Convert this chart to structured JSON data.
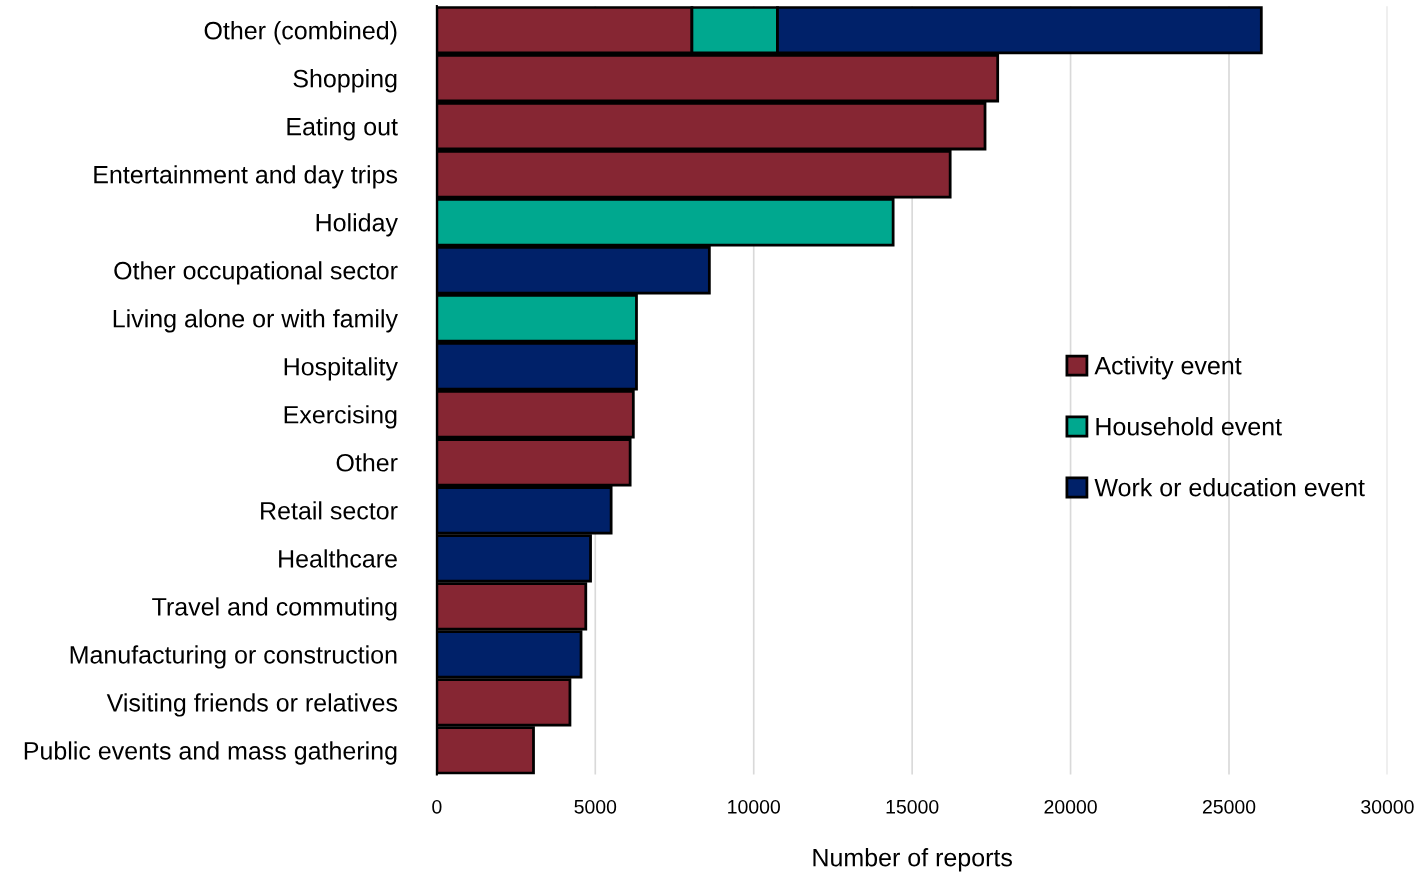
{
  "chart_data": {
    "type": "bar",
    "orientation": "horizontal",
    "stacked": true,
    "xlabel": "Number of reports",
    "categories": [
      "Other (combined)",
      "Shopping",
      "Eating out",
      "Entertainment and day trips",
      "Holiday",
      "Other occupational sector",
      "Living alone or with family",
      "Hospitality",
      "Exercising",
      "Other",
      "Retail sector",
      "Healthcare",
      "Travel and commuting",
      "Manufacturing or construction",
      "Visiting friends or relatives",
      "Public events and mass gathering"
    ],
    "series": [
      {
        "name": "Activity event",
        "color": "#862633",
        "values": [
          8050,
          17700,
          17300,
          16200,
          null,
          null,
          null,
          null,
          6200,
          6100,
          null,
          null,
          4700,
          null,
          4200,
          3050
        ]
      },
      {
        "name": "Household event",
        "color": "#00a88f",
        "values": [
          2700,
          null,
          null,
          null,
          14400,
          null,
          6300,
          null,
          null,
          null,
          null,
          null,
          null,
          null,
          null,
          null
        ]
      },
      {
        "name": "Work or education event",
        "color": "#002169",
        "values": [
          15270,
          null,
          null,
          null,
          null,
          8600,
          null,
          6300,
          null,
          null,
          5500,
          4850,
          null,
          4550,
          null,
          null
        ]
      }
    ],
    "xlim": [
      0,
      30000
    ],
    "xticks": [
      0,
      5000,
      10000,
      15000,
      20000,
      25000,
      30000
    ],
    "grid": "x",
    "legend": "right"
  }
}
